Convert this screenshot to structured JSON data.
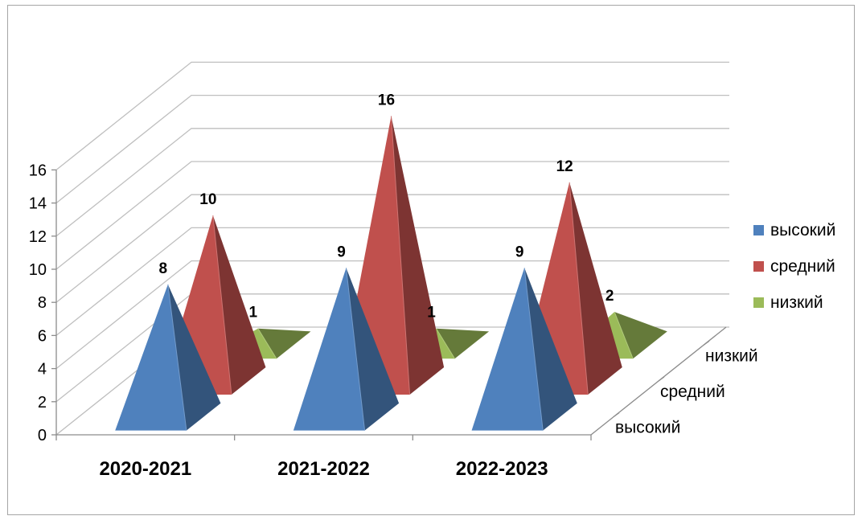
{
  "chart_data": {
    "type": "bar",
    "subtype": "3d-pyramid",
    "title": "",
    "categories": [
      "2020-2021",
      "2021-2022",
      "2022-2023"
    ],
    "depth_labels": [
      "высокий",
      "средний",
      "низкий"
    ],
    "series": [
      {
        "name": "высокий",
        "values": [
          8,
          9,
          9
        ],
        "color": "#4f81bd"
      },
      {
        "name": "средний",
        "values": [
          10,
          16,
          12
        ],
        "color": "#c0504d"
      },
      {
        "name": "низкий",
        "values": [
          1,
          1,
          2
        ],
        "color": "#9bbb59"
      }
    ],
    "ylim": [
      0,
      16
    ],
    "yticks": [
      0,
      2,
      4,
      6,
      8,
      10,
      12,
      14,
      16
    ],
    "grid": true,
    "legend": "right",
    "data_labels": true
  }
}
